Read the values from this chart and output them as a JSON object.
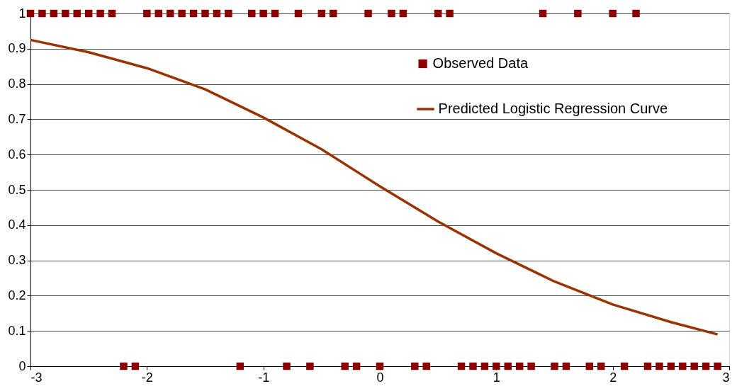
{
  "chart_data": {
    "type": "scatter",
    "xlim": [
      -3,
      3
    ],
    "xticks": [
      -3,
      -2,
      -1,
      0,
      1,
      2,
      3
    ],
    "ylim": [
      0,
      1
    ],
    "yticks": [
      0,
      0.1,
      0.2,
      0.3,
      0.4,
      0.5,
      0.6,
      0.7,
      0.8,
      0.9,
      1
    ],
    "grid": "y",
    "legend": "top right",
    "series": [
      {
        "name": "Observed Data",
        "marker": "square",
        "color": "#8b0000",
        "x": [
          -3,
          -2.9,
          -2.8,
          -2.7,
          -2.6,
          -2.5,
          -2.4,
          -2.3,
          -2,
          -1.9,
          -1.8,
          -1.7,
          -1.6,
          -1.5,
          -1.4,
          -1.3,
          -1.1,
          -1,
          -0.9,
          -0.7,
          -0.5,
          -0.4,
          -0.1,
          0.1,
          0.2,
          0.5,
          0.6,
          1.4,
          1.7,
          2,
          2.2,
          -2.2,
          -2.1,
          -1.2,
          -0.8,
          -0.6,
          -0.3,
          -0.2,
          0,
          0.3,
          0.4,
          0.7,
          0.8,
          0.9,
          1,
          1.1,
          1.2,
          1.3,
          1.5,
          1.6,
          1.8,
          1.9,
          2.1,
          2.3,
          2.4,
          2.5,
          2.6,
          2.7,
          2.8,
          2.9
        ],
        "values": [
          1,
          1,
          1,
          1,
          1,
          1,
          1,
          1,
          1,
          1,
          1,
          1,
          1,
          1,
          1,
          1,
          1,
          1,
          1,
          1,
          1,
          1,
          1,
          1,
          1,
          1,
          1,
          1,
          1,
          1,
          1,
          0,
          0,
          0,
          0,
          0,
          0,
          0,
          0,
          0,
          0,
          0,
          0,
          0,
          0,
          0,
          0,
          0,
          0,
          0,
          0,
          0,
          0,
          0,
          0,
          0,
          0,
          0,
          0,
          0
        ]
      },
      {
        "name": "Predicted Logistic Regression Curve",
        "type": "line",
        "marker": "none",
        "line_style": "solid",
        "color": "#993300",
        "x": [
          -3,
          -2.5,
          -2,
          -1.5,
          -1,
          -0.5,
          0,
          0.5,
          1,
          1.5,
          2,
          2.5,
          2.9
        ],
        "values": [
          0.925,
          0.89,
          0.845,
          0.785,
          0.705,
          0.615,
          0.51,
          0.41,
          0.32,
          0.24,
          0.175,
          0.125,
          0.09
        ]
      }
    ]
  }
}
